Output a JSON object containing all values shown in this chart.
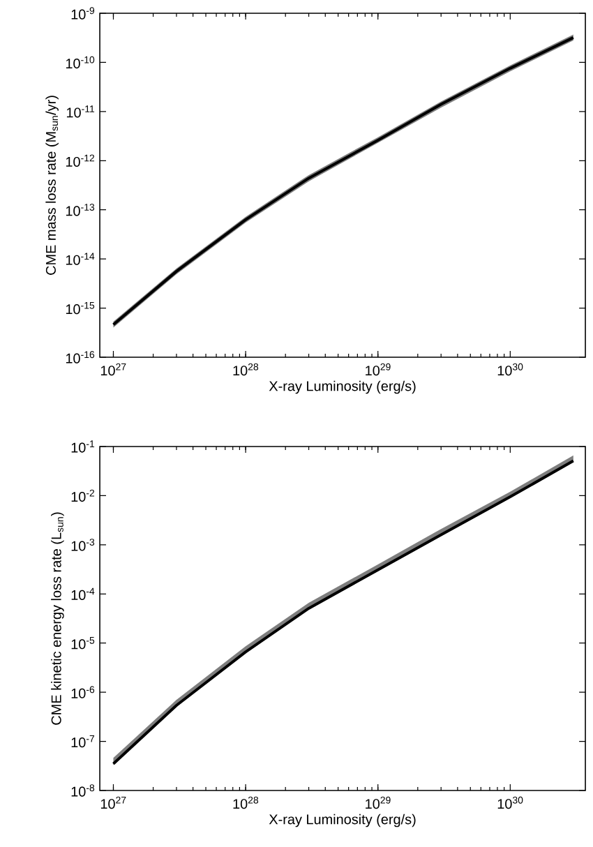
{
  "chart_data": [
    {
      "type": "line",
      "xlabel": "X-ray Luminosity (erg/s)",
      "ylabel": "CME mass loss rate (M$_{sun}$/yr)",
      "log": "xy",
      "xlim": [
        7.9e+26,
        3.7e+30
      ],
      "ylim": [
        1e-16,
        1e-09
      ],
      "xticks": [
        {
          "value": 1e+27,
          "label": "10$^{27}$"
        },
        {
          "value": 1e+28,
          "label": "10$^{28}$"
        },
        {
          "value": 1e+29,
          "label": "10$^{29}$"
        },
        {
          "value": 1e+30,
          "label": "10$^{30}$"
        }
      ],
      "yticks": [
        {
          "value": 1e-16,
          "label": "10$^{-16}$"
        },
        {
          "value": 1e-15,
          "label": "10$^{-15}$"
        },
        {
          "value": 1e-14,
          "label": "10$^{-14}$"
        },
        {
          "value": 1e-13,
          "label": "10$^{-13}$"
        },
        {
          "value": 1e-12,
          "label": "10$^{-12}$"
        },
        {
          "value": 1e-11,
          "label": "10$^{-11}$"
        },
        {
          "value": 1e-10,
          "label": "10$^{-10}$"
        },
        {
          "value": 1e-09,
          "label": "10$^{-9}$"
        }
      ],
      "series": [
        {
          "color": "#000000",
          "x": [
            1e+27,
            3e+27,
            1e+28,
            3e+28,
            1e+29,
            3e+29,
            1e+30,
            3e+30
          ],
          "values": [
            4.6e-16,
            5.6e-15,
            6.3e-14,
            4.4e-13,
            2.6e-12,
            1.4e-11,
            7.6e-11,
            3.2e-10
          ],
          "lower": [
            4e-16,
            4.9e-15,
            5.5e-14,
            3.8e-13,
            2.3e-12,
            1.2e-11,
            6.6e-11,
            2.8e-10
          ],
          "upper": [
            5.3e-16,
            6.4e-15,
            7.2e-14,
            5.1e-13,
            3e-12,
            1.6e-11,
            8.7e-11,
            3.7e-10
          ]
        }
      ]
    },
    {
      "type": "line",
      "xlabel": "X-ray Luminosity (erg/s)",
      "ylabel": "CME kinetic energy loss rate (L$_{sun}$)",
      "log": "xy",
      "xlim": [
        7.9e+26,
        3.7e+30
      ],
      "ylim": [
        1e-08,
        0.1
      ],
      "xticks": [
        {
          "value": 1e+27,
          "label": "10$^{27}$"
        },
        {
          "value": 1e+28,
          "label": "10$^{28}$"
        },
        {
          "value": 1e+29,
          "label": "10$^{29}$"
        },
        {
          "value": 1e+30,
          "label": "10$^{30}$"
        }
      ],
      "yticks": [
        {
          "value": 1e-08,
          "label": "10$^{-8}$"
        },
        {
          "value": 1e-07,
          "label": "10$^{-7}$"
        },
        {
          "value": 1e-06,
          "label": "10$^{-6}$"
        },
        {
          "value": 1e-05,
          "label": "10$^{-5}$"
        },
        {
          "value": 0.0001,
          "label": "10$^{-4}$"
        },
        {
          "value": 0.001,
          "label": "10$^{-3}$"
        },
        {
          "value": 0.01,
          "label": "10$^{-2}$"
        },
        {
          "value": 0.1,
          "label": "10$^{-1}$"
        }
      ],
      "series": [
        {
          "color": "#000000",
          "x": [
            1e+27,
            3e+27,
            1e+28,
            3e+28,
            1e+29,
            3e+29,
            1e+30,
            3e+30
          ],
          "values": [
            3.5e-08,
            5.4e-07,
            6.6e-06,
            5.1e-05,
            0.00031,
            0.0016,
            0.0095,
            0.051
          ],
          "lower": [
            3.3e-08,
            5.1e-07,
            6.3e-06,
            4.8e-05,
            0.00029,
            0.0015,
            0.009,
            0.048
          ],
          "upper": [
            4.6e-08,
            7e-07,
            8.6e-06,
            6.6e-05,
            0.0004,
            0.0021,
            0.012,
            0.066
          ]
        }
      ]
    }
  ]
}
